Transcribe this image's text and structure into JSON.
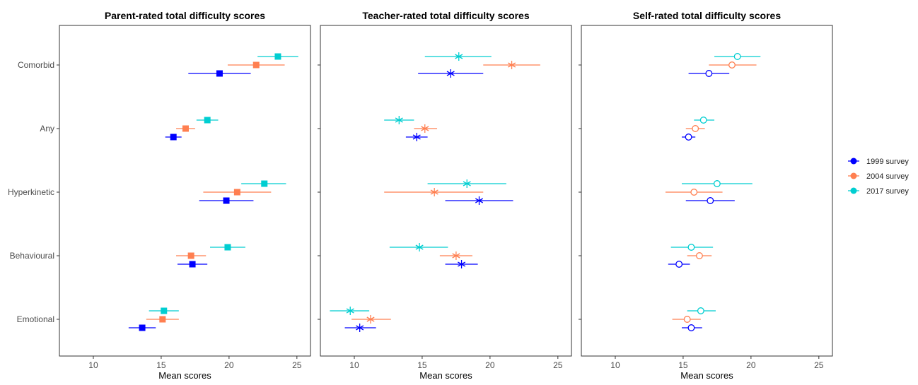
{
  "chart_data": [
    {
      "type": "dot-errorbar",
      "title": "Parent-rated total difficulty scores",
      "xlabel": "Mean scores",
      "xlim": [
        7.5,
        26
      ],
      "xticks": [
        10,
        15,
        20,
        25
      ],
      "categories": [
        "Comorbid",
        "Any",
        "Hyperkinetic",
        "Behavioural",
        "Emotional"
      ],
      "marker": "square-filled",
      "series": [
        {
          "name": "1999 survey",
          "mean": [
            19.3,
            15.9,
            19.8,
            17.3,
            13.6
          ],
          "low": [
            17.0,
            15.3,
            17.8,
            16.2,
            12.6
          ],
          "high": [
            21.6,
            16.5,
            21.8,
            18.4,
            14.6
          ]
        },
        {
          "name": "2004 survey",
          "mean": [
            22.0,
            16.8,
            20.6,
            17.2,
            15.1
          ],
          "low": [
            19.9,
            16.1,
            18.1,
            16.1,
            13.9
          ],
          "high": [
            24.1,
            17.5,
            23.1,
            18.3,
            16.3
          ]
        },
        {
          "name": "2017 survey",
          "mean": [
            23.6,
            18.4,
            22.6,
            19.9,
            15.2
          ],
          "low": [
            22.1,
            17.6,
            20.9,
            18.6,
            14.1
          ],
          "high": [
            25.1,
            19.2,
            24.2,
            21.2,
            16.3
          ]
        }
      ]
    },
    {
      "type": "dot-errorbar",
      "title": "Teacher-rated total difficulty scores",
      "xlabel": "Mean scores",
      "xlim": [
        7.5,
        26
      ],
      "xticks": [
        10,
        15,
        20,
        25
      ],
      "categories": [
        "Comorbid",
        "Any",
        "Hyperkinetic",
        "Behavioural",
        "Emotional"
      ],
      "marker": "asterisk",
      "series": [
        {
          "name": "1999 survey",
          "mean": [
            17.1,
            14.6,
            19.2,
            17.9,
            10.4
          ],
          "low": [
            14.7,
            13.8,
            16.7,
            16.7,
            9.3
          ],
          "high": [
            19.5,
            15.4,
            21.7,
            19.1,
            11.6
          ]
        },
        {
          "name": "2004 survey",
          "mean": [
            21.6,
            15.2,
            15.9,
            17.5,
            11.2
          ],
          "low": [
            19.5,
            14.4,
            12.2,
            16.3,
            9.8
          ],
          "high": [
            23.7,
            16.1,
            19.5,
            18.7,
            12.7
          ]
        },
        {
          "name": "2017 survey",
          "mean": [
            17.7,
            13.3,
            18.3,
            14.8,
            9.7
          ],
          "low": [
            15.2,
            12.2,
            15.4,
            12.6,
            8.2
          ],
          "high": [
            20.1,
            14.4,
            21.2,
            16.9,
            11.1
          ]
        }
      ]
    },
    {
      "type": "dot-errorbar",
      "title": "Self-rated total difficulty scores",
      "xlabel": "Mean scores",
      "xlim": [
        7.5,
        26
      ],
      "xticks": [
        10,
        15,
        20,
        25
      ],
      "categories": [
        "Comorbid",
        "Any",
        "Hyperkinetic",
        "Behavioural",
        "Emotional"
      ],
      "marker": "circle-open",
      "series": [
        {
          "name": "1999 survey",
          "mean": [
            16.9,
            15.4,
            17.0,
            14.7,
            15.6
          ],
          "low": [
            15.4,
            14.9,
            15.2,
            13.9,
            14.9
          ],
          "high": [
            18.4,
            15.9,
            18.8,
            15.5,
            16.4
          ]
        },
        {
          "name": "2004 survey",
          "mean": [
            18.6,
            15.9,
            15.8,
            16.2,
            15.3
          ],
          "low": [
            16.9,
            15.2,
            13.7,
            15.3,
            14.2
          ],
          "high": [
            20.4,
            16.6,
            17.9,
            17.1,
            16.3
          ]
        },
        {
          "name": "2017 survey",
          "mean": [
            19.0,
            16.5,
            17.5,
            15.6,
            16.3
          ],
          "low": [
            17.3,
            15.8,
            14.9,
            14.1,
            15.3
          ],
          "high": [
            20.7,
            17.3,
            20.1,
            17.2,
            17.4
          ]
        }
      ]
    }
  ],
  "legend": {
    "position": "right",
    "entries": [
      {
        "label": "1999 survey",
        "color": "#0000ff"
      },
      {
        "label": "2004 survey",
        "color": "#ff7f50"
      },
      {
        "label": "2017 survey",
        "color": "#00ced1"
      }
    ]
  },
  "colors": {
    "1999 survey": "#0000ff",
    "2004 survey": "#ff7f50",
    "2017 survey": "#00ced1"
  }
}
